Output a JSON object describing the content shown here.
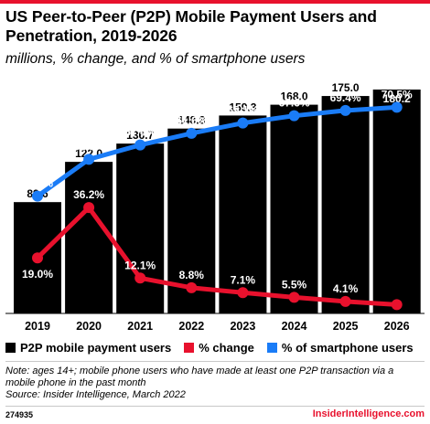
{
  "header": {
    "title": "US Peer-to-Peer (P2P) Mobile Payment Users and Penetration, 2019-2026",
    "subtitle": "millions, % change, and % of smartphone users"
  },
  "chart_data": {
    "type": "bar",
    "categories": [
      "2019",
      "2020",
      "2021",
      "2022",
      "2023",
      "2024",
      "2025",
      "2026"
    ],
    "series": [
      {
        "name": "P2P mobile payment users",
        "type": "bar",
        "color": "#000000",
        "values": [
          89.6,
          122.0,
          136.7,
          148.8,
          159.3,
          168.0,
          175.0,
          180.2
        ],
        "labels": [
          "89.6",
          "122.0",
          "136.7",
          "148.8",
          "159.3",
          "168.0",
          "175.0",
          "180.2"
        ]
      },
      {
        "name": "% change",
        "type": "line",
        "color": "#e8112d",
        "values": [
          19.0,
          36.2,
          12.1,
          8.8,
          7.1,
          5.5,
          4.1,
          3.0
        ],
        "labels": [
          "19.0%",
          "36.2%",
          "12.1%",
          "8.8%",
          "7.1%",
          "5.5%",
          "4.1%",
          "3.0%"
        ]
      },
      {
        "name": "% of smartphone users",
        "type": "line",
        "color": "#1a7cf7",
        "values": [
          40.1,
          52.7,
          57.6,
          61.6,
          65.1,
          67.6,
          69.4,
          70.5
        ],
        "labels": [
          "40.1%",
          "52.7%",
          "57.6%",
          "61.6%",
          "65.1%",
          "67.6%",
          "69.4%",
          "70.5%"
        ]
      }
    ],
    "legend_position": "bottom",
    "grid": false
  },
  "legend": {
    "users": "P2P mobile payment users",
    "change": "% change",
    "smartphone": "% of smartphone users"
  },
  "note": {
    "line1": "Note: ages 14+; mobile phone users who have made at least one P2P transaction via a mobile phone in the past month",
    "line2": "Source: Insider Intelligence, March 2022"
  },
  "footer": {
    "id": "274935",
    "brand": "InsiderIntelligence.com"
  }
}
